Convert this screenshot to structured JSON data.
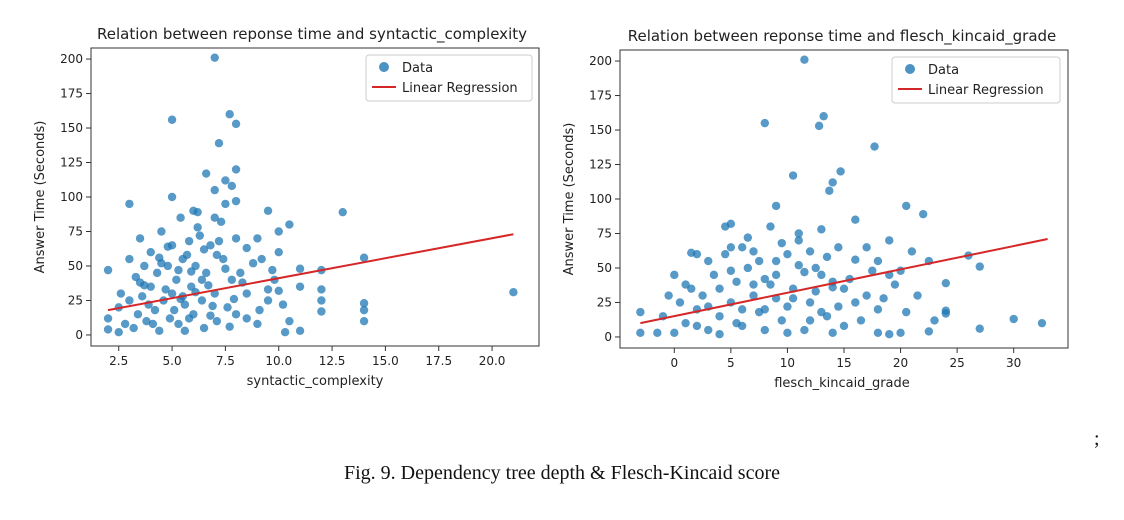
{
  "caption": "Fig. 9. Dependency tree depth & Flesch-Kincaid score",
  "trailing_mark": ";",
  "colors": {
    "points": "#1f77b4",
    "regression": "#d62728"
  },
  "chart_data": [
    {
      "type": "scatter",
      "title": "Relation between reponse time and syntactic_complexity",
      "xlabel": "syntactic_complexity",
      "ylabel": "Answer Time (Seconds)",
      "xlim": [
        1.2,
        22.2
      ],
      "ylim": [
        -8,
        208
      ],
      "xticks": [
        2.5,
        5.0,
        7.5,
        10.0,
        12.5,
        15.0,
        17.5,
        20.0
      ],
      "xtick_labels": [
        "2.5",
        "5.0",
        "7.5",
        "10.0",
        "12.5",
        "15.0",
        "17.5",
        "20.0"
      ],
      "yticks": [
        0,
        25,
        50,
        75,
        100,
        125,
        150,
        175,
        200
      ],
      "legend": {
        "placement": "top-right",
        "entries": [
          "Data",
          "Linear Regression"
        ]
      },
      "series": [
        {
          "name": "Data",
          "kind": "scatter",
          "points": [
            [
              7,
              201
            ],
            [
              5,
              156
            ],
            [
              7.7,
              160
            ],
            [
              8,
              153
            ],
            [
              7.2,
              139
            ],
            [
              8,
              120
            ],
            [
              6.6,
              117
            ],
            [
              7.5,
              112
            ],
            [
              7.8,
              108
            ],
            [
              7,
              105
            ],
            [
              3,
              95
            ],
            [
              13,
              89
            ],
            [
              5,
              100
            ],
            [
              9.5,
              90
            ],
            [
              7,
              85
            ],
            [
              8,
              97
            ],
            [
              6.2,
              89
            ],
            [
              7.5,
              95
            ],
            [
              2,
              47
            ],
            [
              2,
              12
            ],
            [
              2,
              4
            ],
            [
              21,
              31
            ],
            [
              14,
              23
            ],
            [
              14,
              18
            ],
            [
              14,
              10
            ],
            [
              14,
              56
            ],
            [
              12,
              47
            ],
            [
              12,
              33
            ],
            [
              12,
              25
            ],
            [
              12,
              17
            ],
            [
              11,
              35
            ],
            [
              11,
              48
            ],
            [
              11,
              3
            ],
            [
              10.5,
              80
            ],
            [
              10.5,
              10
            ],
            [
              10.3,
              2
            ],
            [
              10,
              75
            ],
            [
              10,
              60
            ],
            [
              9.8,
              40
            ],
            [
              9.5,
              25
            ],
            [
              9.2,
              55
            ],
            [
              9,
              70
            ],
            [
              9,
              8
            ],
            [
              8.5,
              30
            ],
            [
              8.5,
              63
            ],
            [
              8.2,
              45
            ],
            [
              8,
              15
            ],
            [
              8,
              70
            ],
            [
              7.8,
              40
            ],
            [
              7.6,
              20
            ],
            [
              7.4,
              55
            ],
            [
              7.3,
              82
            ],
            [
              7.1,
              10
            ],
            [
              7,
              30
            ],
            [
              6.8,
              65
            ],
            [
              6.6,
              45
            ],
            [
              6.5,
              5
            ],
            [
              6.4,
              25
            ],
            [
              6.2,
              78
            ],
            [
              6.1,
              50
            ],
            [
              6,
              15
            ],
            [
              5.9,
              35
            ],
            [
              5.8,
              68
            ],
            [
              5.6,
              22
            ],
            [
              5.5,
              55
            ],
            [
              5.4,
              85
            ],
            [
              5.3,
              8
            ],
            [
              5.2,
              40
            ],
            [
              5,
              30
            ],
            [
              5,
              65
            ],
            [
              4.9,
              12
            ],
            [
              4.8,
              50
            ],
            [
              4.6,
              25
            ],
            [
              4.5,
              75
            ],
            [
              4.4,
              3
            ],
            [
              4.3,
              45
            ],
            [
              4.2,
              18
            ],
            [
              4,
              60
            ],
            [
              4,
              35
            ],
            [
              3.8,
              10
            ],
            [
              3.7,
              50
            ],
            [
              3.6,
              28
            ],
            [
              3.5,
              70
            ],
            [
              3.4,
              15
            ],
            [
              3.3,
              42
            ],
            [
              3.2,
              5
            ],
            [
              3,
              55
            ],
            [
              3,
              25
            ],
            [
              2.8,
              8
            ],
            [
              2.6,
              30
            ],
            [
              2.5,
              2
            ],
            [
              2.5,
              20
            ],
            [
              3.5,
              38
            ],
            [
              4.5,
              52
            ],
            [
              5.5,
              28
            ],
            [
              6.5,
              62
            ],
            [
              7.5,
              48
            ],
            [
              8.5,
              12
            ],
            [
              9.5,
              33
            ],
            [
              6.3,
              72
            ],
            [
              5.7,
              58
            ],
            [
              4.7,
              33
            ],
            [
              3.9,
              22
            ],
            [
              5.1,
              18
            ],
            [
              6.7,
              36
            ],
            [
              7.9,
              26
            ],
            [
              8.8,
              52
            ],
            [
              6.9,
              21
            ],
            [
              5.3,
              47
            ],
            [
              4.1,
              8
            ],
            [
              6,
              90
            ],
            [
              5.6,
              3
            ],
            [
              7.2,
              68
            ],
            [
              6.4,
              40
            ],
            [
              5.8,
              12
            ],
            [
              4.8,
              64
            ],
            [
              3.7,
              36
            ],
            [
              7.7,
              6
            ],
            [
              8.3,
              38
            ],
            [
              9.1,
              18
            ],
            [
              6.1,
              31
            ],
            [
              5.4,
              26
            ],
            [
              4.4,
              56
            ],
            [
              6.8,
              14
            ],
            [
              5.9,
              46
            ],
            [
              7.1,
              58
            ],
            [
              10,
              32
            ],
            [
              10.2,
              22
            ],
            [
              9.7,
              47
            ]
          ]
        },
        {
          "name": "Linear Regression",
          "kind": "line",
          "x": [
            2,
            21
          ],
          "y": [
            18,
            73
          ]
        }
      ]
    },
    {
      "type": "scatter",
      "title": "Relation between reponse time and flesch_kincaid_grade",
      "xlabel": "flesch_kincaid_grade",
      "ylabel": "Answer Time (Seconds)",
      "xlim": [
        -4.8,
        34.8
      ],
      "ylim": [
        -8,
        208
      ],
      "xticks": [
        0,
        5,
        10,
        15,
        20,
        25,
        30
      ],
      "xtick_labels": [
        "0",
        "5",
        "10",
        "15",
        "20",
        "25",
        "30"
      ],
      "yticks": [
        0,
        25,
        50,
        75,
        100,
        125,
        150,
        175,
        200
      ],
      "legend": {
        "placement": "top-right",
        "entries": [
          "Data",
          "Linear Regression"
        ]
      },
      "series": [
        {
          "name": "Data",
          "kind": "scatter",
          "points": [
            [
              11.5,
              201
            ],
            [
              8,
              155
            ],
            [
              13.2,
              160
            ],
            [
              12.8,
              153
            ],
            [
              17.7,
              138
            ],
            [
              14.7,
              120
            ],
            [
              10.5,
              117
            ],
            [
              14,
              112
            ],
            [
              13.7,
              106
            ],
            [
              9,
              95
            ],
            [
              20.5,
              95
            ],
            [
              22,
              89
            ],
            [
              5,
              82
            ],
            [
              4.5,
              80
            ],
            [
              1.5,
              61
            ],
            [
              -3,
              18
            ],
            [
              -3,
              3
            ],
            [
              -1.5,
              3
            ],
            [
              26,
              59
            ],
            [
              27,
              51
            ],
            [
              24,
              39
            ],
            [
              24,
              19
            ],
            [
              24,
              17
            ],
            [
              30,
              13
            ],
            [
              32.5,
              10
            ],
            [
              27,
              6
            ],
            [
              22.5,
              4
            ],
            [
              20,
              3
            ],
            [
              19,
              2
            ],
            [
              18,
              3
            ],
            [
              21,
              62
            ],
            [
              20,
              48
            ],
            [
              19,
              70
            ],
            [
              18,
              55
            ],
            [
              17,
              30
            ],
            [
              16,
              85
            ],
            [
              15,
              8
            ],
            [
              14.5,
              65
            ],
            [
              14,
              40
            ],
            [
              13.5,
              15
            ],
            [
              13,
              78
            ],
            [
              12.5,
              50
            ],
            [
              12,
              25
            ],
            [
              11.5,
              5
            ],
            [
              11,
              70
            ],
            [
              10.5,
              35
            ],
            [
              10,
              60
            ],
            [
              9.5,
              12
            ],
            [
              9,
              45
            ],
            [
              8.5,
              80
            ],
            [
              8,
              20
            ],
            [
              7.5,
              55
            ],
            [
              7,
              30
            ],
            [
              6.5,
              72
            ],
            [
              6,
              8
            ],
            [
              5.5,
              40
            ],
            [
              5,
              25
            ],
            [
              4.5,
              60
            ],
            [
              4,
              15
            ],
            [
              3.5,
              45
            ],
            [
              3,
              5
            ],
            [
              2.5,
              30
            ],
            [
              2,
              20
            ],
            [
              1.5,
              35
            ],
            [
              1,
              10
            ],
            [
              0.5,
              25
            ],
            [
              0,
              3
            ],
            [
              0,
              45
            ],
            [
              -1,
              15
            ],
            [
              -0.5,
              30
            ],
            [
              3,
              55
            ],
            [
              5.5,
              10
            ],
            [
              6.5,
              50
            ],
            [
              7.5,
              18
            ],
            [
              8.5,
              38
            ],
            [
              9.5,
              68
            ],
            [
              10.5,
              28
            ],
            [
              11.5,
              47
            ],
            [
              12.5,
              33
            ],
            [
              13.5,
              58
            ],
            [
              14.5,
              22
            ],
            [
              15.5,
              42
            ],
            [
              16.5,
              12
            ],
            [
              17.5,
              48
            ],
            [
              18.5,
              28
            ],
            [
              19.5,
              38
            ],
            [
              20.5,
              18
            ],
            [
              21.5,
              30
            ],
            [
              22.5,
              55
            ],
            [
              23,
              12
            ],
            [
              2,
              60
            ],
            [
              4,
              35
            ],
            [
              6,
              65
            ],
            [
              8,
              42
            ],
            [
              10,
              22
            ],
            [
              12,
              62
            ],
            [
              14,
              36
            ],
            [
              16,
              56
            ],
            [
              18,
              20
            ],
            [
              9,
              28
            ],
            [
              11,
              52
            ],
            [
              13,
              18
            ],
            [
              15,
              35
            ],
            [
              7,
              38
            ],
            [
              5,
              48
            ],
            [
              3,
              22
            ],
            [
              1,
              38
            ],
            [
              6,
              20
            ],
            [
              10,
              3
            ],
            [
              12,
              12
            ],
            [
              14,
              3
            ],
            [
              8,
              5
            ],
            [
              16,
              25
            ],
            [
              17,
              65
            ],
            [
              19,
              45
            ],
            [
              7,
              62
            ],
            [
              9,
              55
            ],
            [
              11,
              75
            ],
            [
              13,
              45
            ],
            [
              5,
              65
            ],
            [
              4,
              2
            ],
            [
              2,
              8
            ]
          ]
        },
        {
          "name": "Linear Regression",
          "kind": "line",
          "x": [
            -3,
            33
          ],
          "y": [
            10,
            71
          ]
        }
      ]
    }
  ]
}
